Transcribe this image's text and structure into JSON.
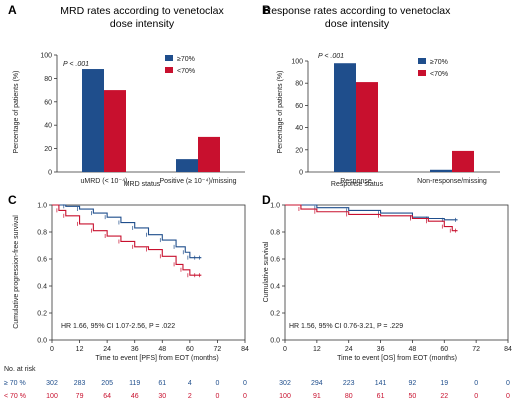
{
  "colors": {
    "ge70": "#1f4e8c",
    "lt70": "#c8102e",
    "axis": "#333333"
  },
  "chart_data": [
    {
      "panel": "A",
      "type": "bar",
      "title": "MRD rates according to venetoclax dose intensity",
      "title_lines": [
        "MRD rates according to venetoclax",
        "dose intensity"
      ],
      "xlabel": "MRD status",
      "ylabel": "Percentage of patients (%)",
      "ylim": [
        0,
        100
      ],
      "yticks": [
        "0",
        "20",
        "40",
        "60",
        "80",
        "100"
      ],
      "categories": [
        "uMRD (< 10⁻⁴)",
        "Positive (≥ 10⁻⁴)/missing"
      ],
      "series": [
        {
          "name": "≥70%",
          "values": [
            88,
            11
          ]
        },
        {
          "name": "<70%",
          "values": [
            70,
            30
          ]
        }
      ],
      "annotation": "P < .001",
      "legend_position": "top-right"
    },
    {
      "panel": "B",
      "type": "bar",
      "title": "Response rates according to venetoclax dose intensity",
      "title_lines": [
        "Response rates according to venetoclax",
        "dose intensity"
      ],
      "xlabel": "Response status",
      "ylabel": "Percentage of patients (%)",
      "ylim": [
        0,
        100
      ],
      "yticks": [
        "0",
        "20",
        "40",
        "60",
        "80",
        "100"
      ],
      "categories": [
        "Response",
        "Non-response/missing"
      ],
      "series": [
        {
          "name": "≥70%",
          "values": [
            98,
            2
          ]
        },
        {
          "name": "<70%",
          "values": [
            81,
            19
          ]
        }
      ],
      "annotation": "P < .001",
      "legend_position": "top-right"
    },
    {
      "panel": "C",
      "type": "line",
      "xlabel": "Time to event [PFS] from EOT (months)",
      "ylabel": "Cumulative progression-free survival",
      "xlim": [
        0,
        84
      ],
      "ylim": [
        0,
        1
      ],
      "xticks": [
        "0",
        "12",
        "24",
        "36",
        "48",
        "60",
        "72",
        "84"
      ],
      "yticks": [
        "0.0",
        "0.2",
        "0.4",
        "0.6",
        "0.8",
        "1.0"
      ],
      "series": [
        {
          "name": "≥70%",
          "x": [
            0,
            6,
            12,
            18,
            24,
            30,
            36,
            42,
            48,
            54,
            58,
            60,
            63,
            65
          ],
          "y": [
            1.0,
            0.99,
            0.97,
            0.94,
            0.91,
            0.87,
            0.83,
            0.78,
            0.74,
            0.69,
            0.65,
            0.61,
            0.61,
            0.61
          ]
        },
        {
          "name": "<70%",
          "x": [
            0,
            3,
            6,
            12,
            18,
            24,
            30,
            36,
            42,
            48,
            54,
            57,
            60,
            63,
            65
          ],
          "y": [
            1.0,
            0.96,
            0.92,
            0.86,
            0.81,
            0.77,
            0.73,
            0.69,
            0.67,
            0.62,
            0.56,
            0.52,
            0.48,
            0.48,
            0.48
          ]
        }
      ],
      "annotation": "HR 1.66, 95% CI 1.07-2.56, P = .022"
    },
    {
      "panel": "D",
      "type": "line",
      "xlabel": "Time to event [OS] from EOT (months)",
      "ylabel": "Cumulative survival",
      "xlim": [
        0,
        84
      ],
      "ylim": [
        0,
        1
      ],
      "xticks": [
        "0",
        "12",
        "24",
        "36",
        "48",
        "60",
        "72",
        "84"
      ],
      "yticks": [
        "0.0",
        "0.2",
        "0.4",
        "0.6",
        "0.8",
        "1.0"
      ],
      "series": [
        {
          "name": "≥70%",
          "x": [
            0,
            12,
            24,
            36,
            48,
            54,
            60,
            65
          ],
          "y": [
            1.0,
            0.98,
            0.96,
            0.94,
            0.91,
            0.9,
            0.89,
            0.89
          ]
        },
        {
          "name": "<70%",
          "x": [
            0,
            6,
            12,
            24,
            36,
            48,
            54,
            60,
            63,
            65
          ],
          "y": [
            1.0,
            0.97,
            0.95,
            0.93,
            0.92,
            0.9,
            0.88,
            0.84,
            0.81,
            0.81
          ]
        }
      ],
      "annotation": "HR 1.56, 95% CI 0.76-3.21, P = .229"
    }
  ],
  "risk_tables": {
    "title": "No. at risk",
    "C": {
      "ge70": [
        302,
        283,
        205,
        119,
        61,
        4,
        0,
        0
      ],
      "lt70": [
        100,
        79,
        64,
        46,
        30,
        2,
        0,
        0
      ]
    },
    "D": {
      "ge70": [
        302,
        294,
        223,
        141,
        92,
        19,
        0,
        0
      ],
      "lt70": [
        100,
        91,
        80,
        61,
        50,
        22,
        0,
        0
      ]
    },
    "row_labels": {
      "ge70": "≥ 70 %",
      "lt70": "< 70 %"
    }
  }
}
